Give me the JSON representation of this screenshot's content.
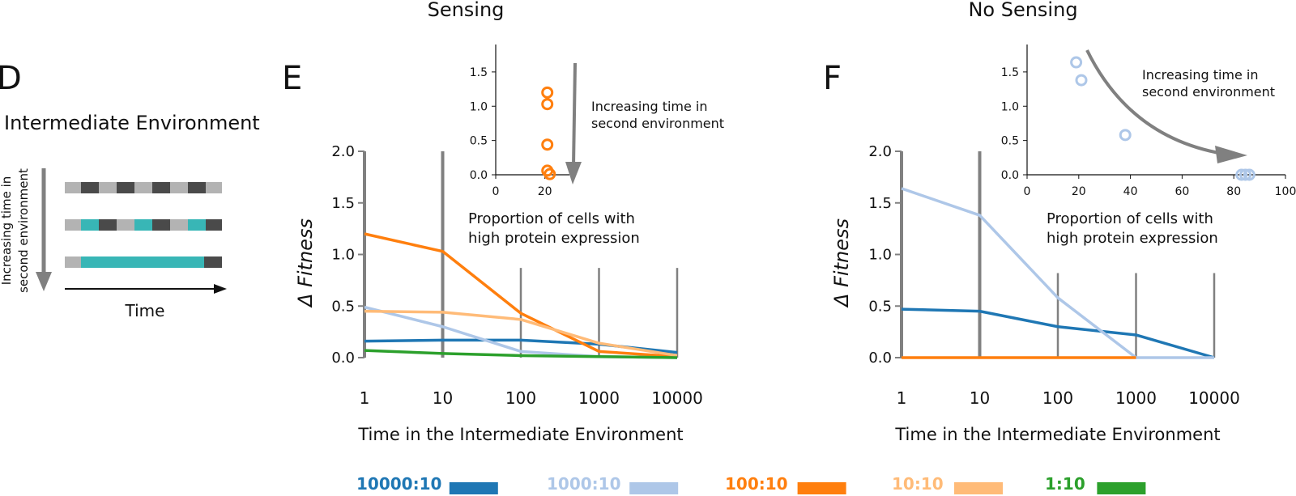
{
  "colors": {
    "blue": "#1f77b4",
    "lightblue": "#aec7e8",
    "orange": "#ff7f0e",
    "lightorange": "#ffbb78",
    "green": "#2ca02c",
    "teal": "#38b6b6",
    "darkgray": "#4a4a4a",
    "lightgray": "#b3b3b3",
    "axisgray": "#808080"
  },
  "panel_d": {
    "letter": "D",
    "title": "Intermediate Environment",
    "arrow_label_line1": "Increasing time in",
    "arrow_label_line2": "second  environment",
    "time_label": "Time"
  },
  "panel_e": {
    "letter": "E",
    "header": "Sensing"
  },
  "panel_f": {
    "letter": "F",
    "header": "No Sensing"
  },
  "inset_e_annotation": [
    "Increasing time in",
    "second  environment"
  ],
  "inset_f_annotation": [
    "Increasing time in",
    "second  environment"
  ],
  "legend": [
    {
      "label": "10000:10",
      "color": "#1f77b4"
    },
    {
      "label": "1000:10",
      "color": "#aec7e8"
    },
    {
      "label": "100:10",
      "color": "#ff7f0e"
    },
    {
      "label": "10:10",
      "color": "#ffbb78"
    },
    {
      "label": "1:10",
      "color": "#2ca02c"
    }
  ],
  "chart_data": [
    {
      "type": "line",
      "title": "Sensing",
      "xlabel": "Time in the Intermediate Environment",
      "ylabel": "Δ Fitness",
      "x": [
        1,
        10,
        100,
        1000,
        10000
      ],
      "x_scale": "log",
      "xticklabels": [
        "1",
        "10",
        "100",
        "1000",
        "10000"
      ],
      "ylim": [
        0,
        2
      ],
      "yticklabels": [
        "0.0",
        "0.5",
        "1.0",
        "1.5",
        "2.0"
      ],
      "series": [
        {
          "name": "10000:10",
          "values": [
            0.16,
            0.17,
            0.17,
            0.13,
            0.05
          ]
        },
        {
          "name": "1000:10",
          "values": [
            0.49,
            0.3,
            0.06,
            0.01,
            0.0
          ]
        },
        {
          "name": "100:10",
          "values": [
            1.2,
            1.03,
            0.43,
            0.06,
            0.01
          ]
        },
        {
          "name": "10:10",
          "values": [
            0.45,
            0.44,
            0.37,
            0.14,
            0.02
          ]
        },
        {
          "name": "1:10",
          "values": [
            0.07,
            0.04,
            0.02,
            0.01,
            0.0
          ]
        }
      ],
      "vertical_bars_height": [
        2.0,
        2.0,
        0.87,
        0.87,
        0.87
      ]
    },
    {
      "type": "scatter",
      "title": "",
      "xlabel": "Proportion of cells with high protein expression",
      "ylabel": "",
      "xlim": [
        0,
        30
      ],
      "xticks": [
        0,
        20
      ],
      "ylim": [
        0,
        1.9
      ],
      "yticks": [
        0.0,
        0.5,
        1.0,
        1.5
      ],
      "xticklabels": [
        "0",
        "20"
      ],
      "yticklabels": [
        "0.0",
        "0.5",
        "1.0",
        "1.5"
      ],
      "points": [
        {
          "x": 21,
          "y": 1.2
        },
        {
          "x": 21,
          "y": 1.03
        },
        {
          "x": 21,
          "y": 0.44
        },
        {
          "x": 21,
          "y": 0.06
        },
        {
          "x": 22,
          "y": 0.01
        }
      ]
    },
    {
      "type": "line",
      "title": "No Sensing",
      "xlabel": "Time in the Intermediate Environment",
      "ylabel": "Δ Fitness",
      "x": [
        1,
        10,
        100,
        1000,
        10000
      ],
      "x_scale": "log",
      "xticklabels": [
        "1",
        "10",
        "100",
        "1000",
        "10000"
      ],
      "ylim": [
        0,
        2
      ],
      "yticklabels": [
        "0.0",
        "0.5",
        "1.0",
        "1.5",
        "2.0"
      ],
      "series": [
        {
          "name": "10000:10",
          "values": [
            0.47,
            0.45,
            0.3,
            0.22,
            0.0
          ]
        },
        {
          "name": "1000:10",
          "values": [
            1.64,
            1.38,
            0.58,
            0.0,
            0.0
          ]
        },
        {
          "name": "100:10",
          "values": [
            0.0,
            0.0,
            0.0,
            0.0,
            null
          ]
        }
      ],
      "vertical_bars_height": [
        2.0,
        2.0,
        0.82,
        0.82,
        0.82
      ]
    },
    {
      "type": "scatter",
      "title": "",
      "xlabel": "Proportion of cells with high protein expression",
      "ylabel": "",
      "xlim": [
        0,
        100
      ],
      "xticks": [
        0,
        20,
        40,
        60,
        80,
        100
      ],
      "ylim": [
        0,
        1.9
      ],
      "yticks": [
        0.0,
        0.5,
        1.0,
        1.5
      ],
      "xticklabels": [
        "0",
        "20",
        "40",
        "60",
        "80",
        "100"
      ],
      "yticklabels": [
        "0.0",
        "0.5",
        "1.0",
        "1.5"
      ],
      "points": [
        {
          "x": 19,
          "y": 1.64
        },
        {
          "x": 21,
          "y": 1.38
        },
        {
          "x": 38,
          "y": 0.58
        },
        {
          "x": 83,
          "y": 0.0
        },
        {
          "x": 84.5,
          "y": 0.0
        },
        {
          "x": 86,
          "y": 0.0
        }
      ]
    }
  ]
}
